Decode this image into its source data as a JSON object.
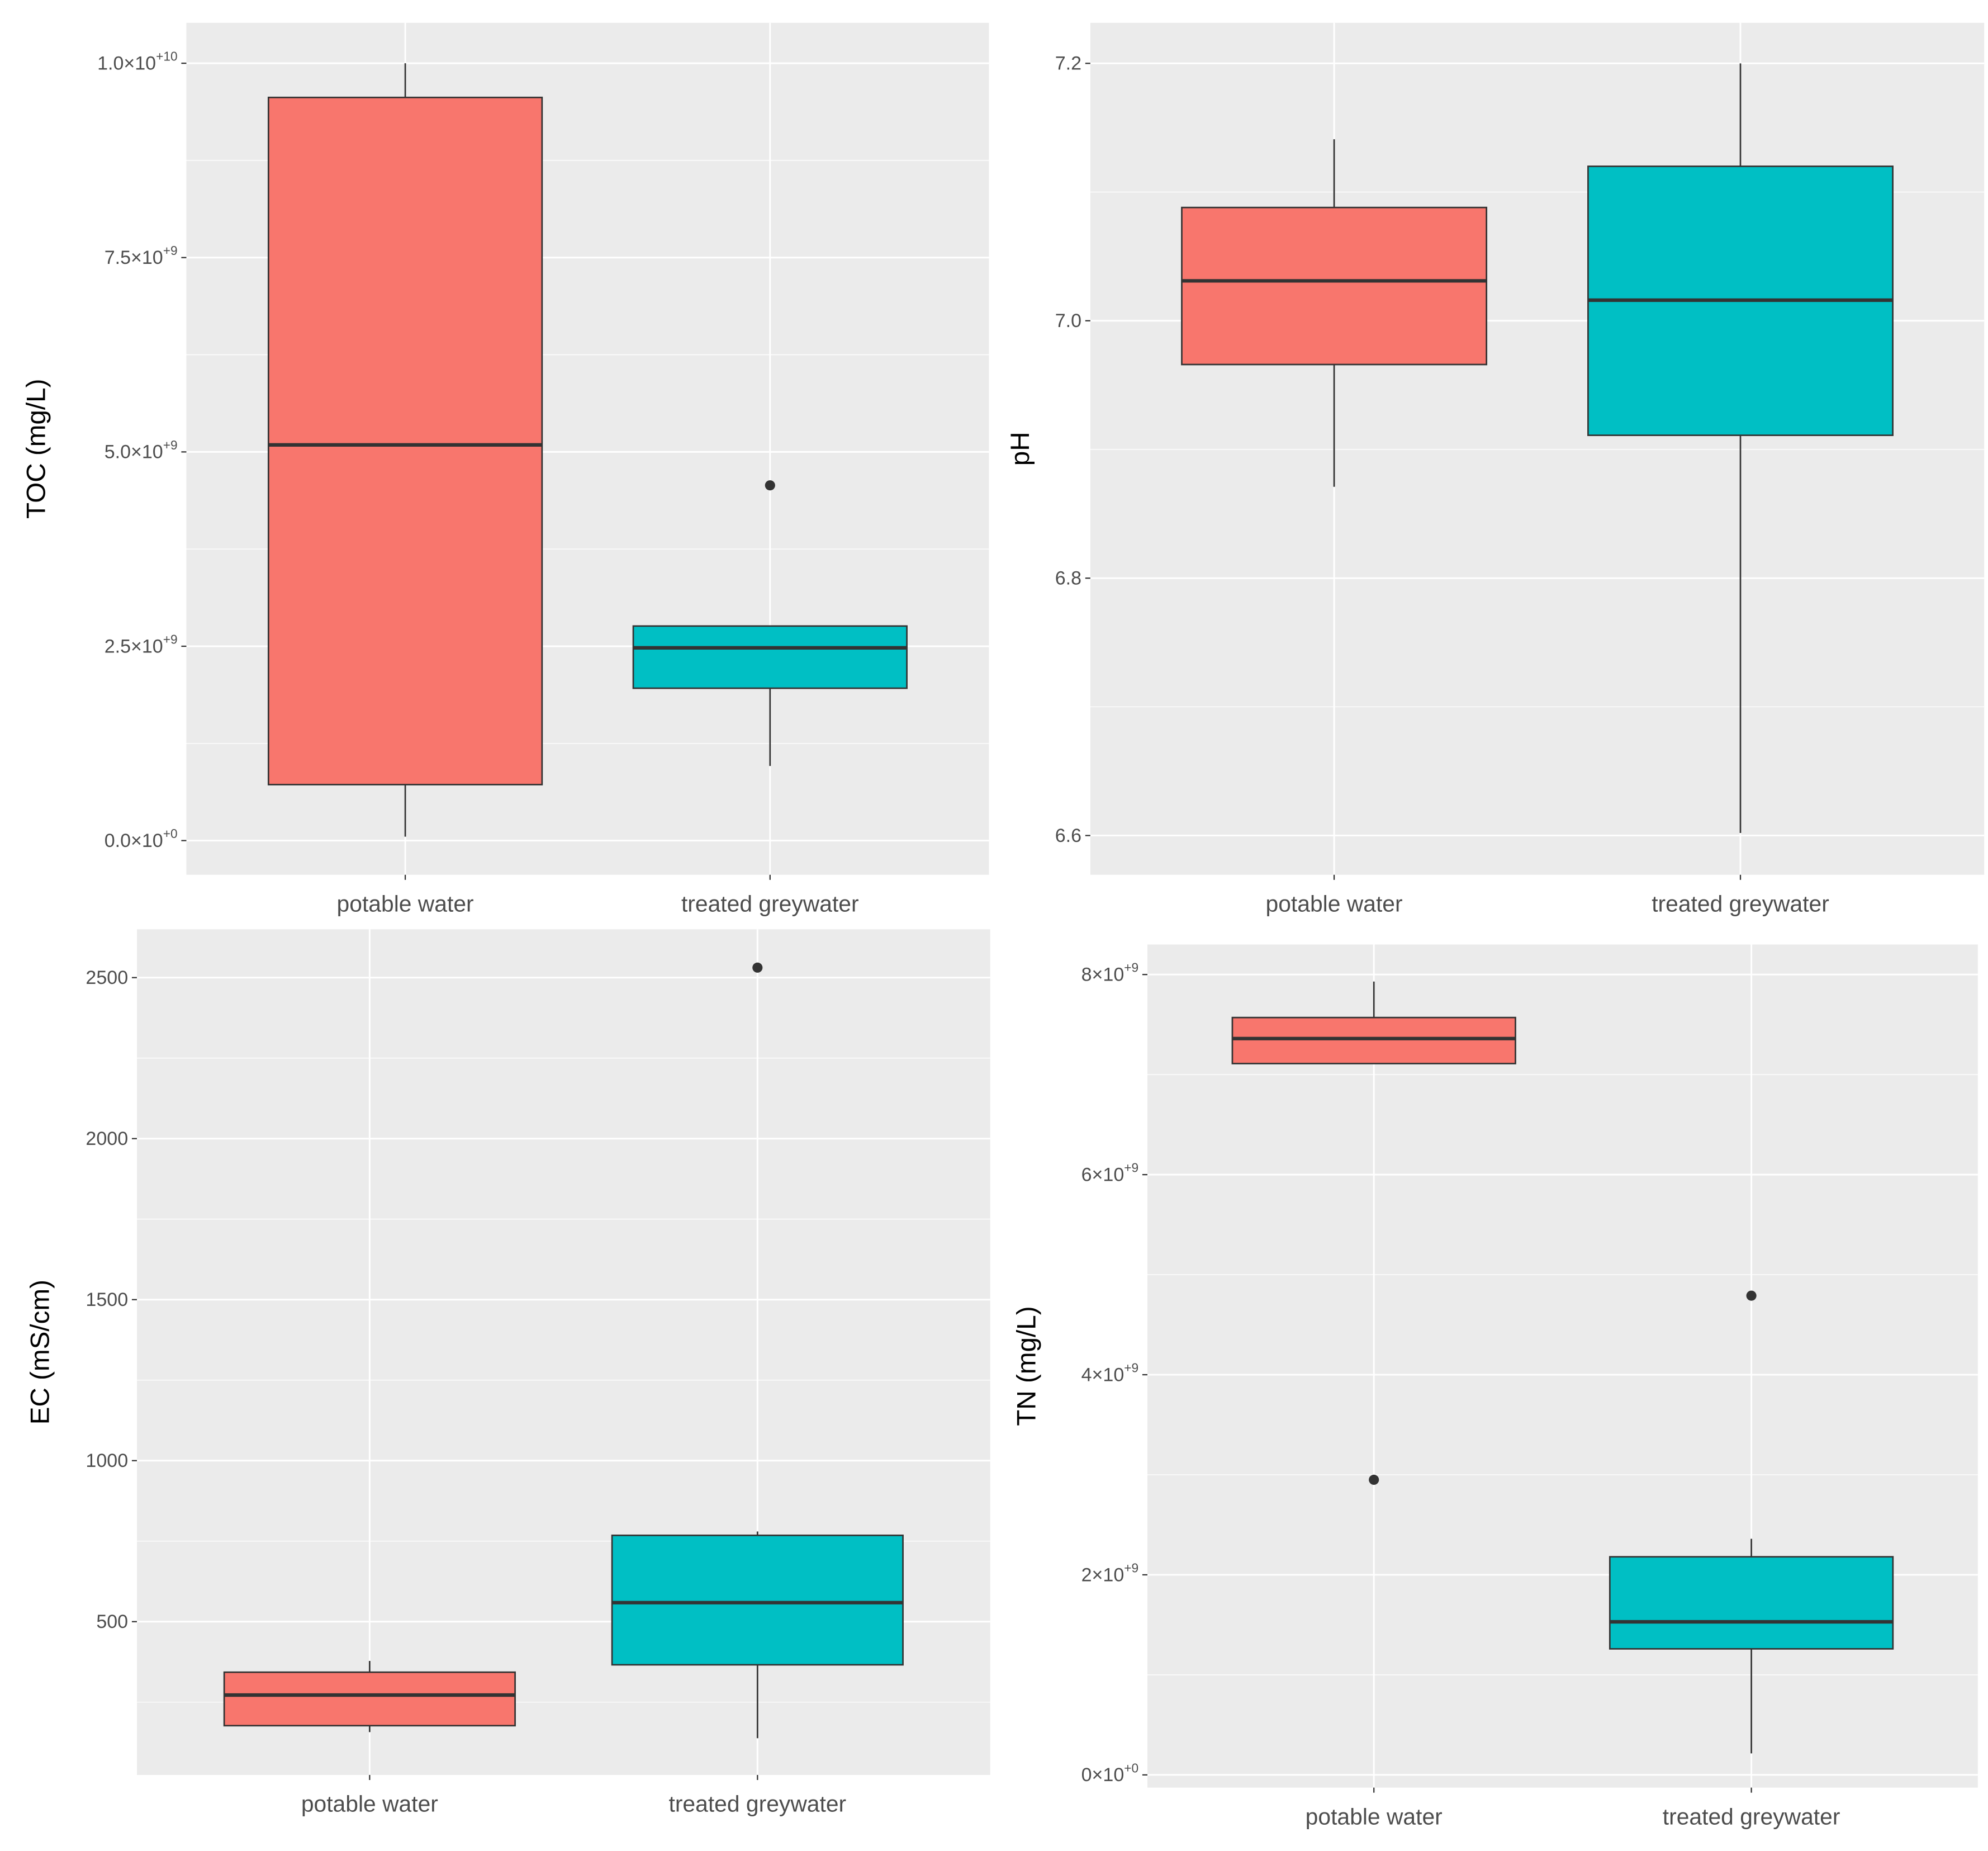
{
  "chart_data": [
    {
      "type": "box",
      "ylabel": "TOC (mg/L)",
      "categories": [
        "potable water",
        "treated greywater"
      ],
      "boxes": [
        {
          "color": "#F8766D",
          "min": 50000000,
          "q1": 720000000,
          "median": 5090000000,
          "q3": 9560000000,
          "max": 10000000000,
          "outliers": []
        },
        {
          "color": "#00BFC4",
          "min": 960000000,
          "q1": 1960000000,
          "median": 2480000000,
          "q3": 2760000000,
          "max": 2760000000,
          "outliers": [
            4570000000
          ]
        }
      ],
      "ylim": [
        -440000000,
        10520000000
      ],
      "yticks": [
        {
          "value": 0,
          "label": "0.0×10",
          "exponent": "+0"
        },
        {
          "value": 2500000000,
          "label": "2.5×10",
          "exponent": "+9"
        },
        {
          "value": 5000000000,
          "label": "5.0×10",
          "exponent": "+9"
        },
        {
          "value": 7500000000,
          "label": "7.5×10",
          "exponent": "+9"
        },
        {
          "value": 10000000000,
          "label": "1.0×10",
          "exponent": "+10"
        }
      ],
      "grid": true
    },
    {
      "type": "box",
      "ylabel": "pH",
      "categories": [
        "potable water",
        "treated greywater"
      ],
      "boxes": [
        {
          "color": "#F8766D",
          "min": 6.871,
          "q1": 6.966,
          "median": 7.031,
          "q3": 7.088,
          "max": 7.141,
          "outliers": []
        },
        {
          "color": "#00BFC4",
          "min": 6.602,
          "q1": 6.911,
          "median": 7.016,
          "q3": 7.12,
          "max": 7.2,
          "outliers": []
        }
      ],
      "ylim": [
        6.5695,
        7.2315
      ],
      "yticks": [
        {
          "value": 6.6,
          "label": "6.6"
        },
        {
          "value": 6.8,
          "label": "6.8"
        },
        {
          "value": 7.0,
          "label": "7.0"
        },
        {
          "value": 7.2,
          "label": "7.2"
        }
      ],
      "grid": true
    },
    {
      "type": "box",
      "ylabel": "EC (mS/cm)",
      "categories": [
        "potable water",
        "treated greywater"
      ],
      "boxes": [
        {
          "color": "#F8766D",
          "min": 157,
          "q1": 177,
          "median": 272,
          "q3": 343,
          "max": 378,
          "outliers": []
        },
        {
          "color": "#00BFC4",
          "min": 138,
          "q1": 366,
          "median": 559,
          "q3": 768,
          "max": 780,
          "outliers": [
            2531
          ]
        }
      ],
      "ylim": [
        24,
        2650
      ],
      "yticks": [
        500,
        1000,
        1500,
        2000,
        2500
      ],
      "grid": true
    },
    {
      "type": "box",
      "ylabel": "TN (mg/L)",
      "categories": [
        "potable water",
        "treated greywater"
      ],
      "boxes": [
        {
          "color": "#F8766D",
          "min": 7110000000,
          "q1": 7110000000,
          "median": 7360000000,
          "q3": 7570000000,
          "max": 7930000000,
          "outliers": [
            2950000000
          ]
        },
        {
          "color": "#00BFC4",
          "min": 215000000,
          "q1": 1260000000,
          "median": 1530000000,
          "q3": 2180000000,
          "max": 2360000000,
          "outliers": [
            4790000000
          ]
        }
      ],
      "ylim": [
        -127000000,
        8300000000
      ],
      "yticks": [
        {
          "value": 0,
          "label": "0×10",
          "exponent": "+0"
        },
        {
          "value": 2000000000,
          "label": "2×10",
          "exponent": "+9"
        },
        {
          "value": 4000000000,
          "label": "4×10",
          "exponent": "+9"
        },
        {
          "value": 6000000000,
          "label": "6×10",
          "exponent": "+9"
        },
        {
          "value": 8000000000,
          "label": "8×10",
          "exponent": "+9"
        }
      ],
      "grid": true
    }
  ]
}
